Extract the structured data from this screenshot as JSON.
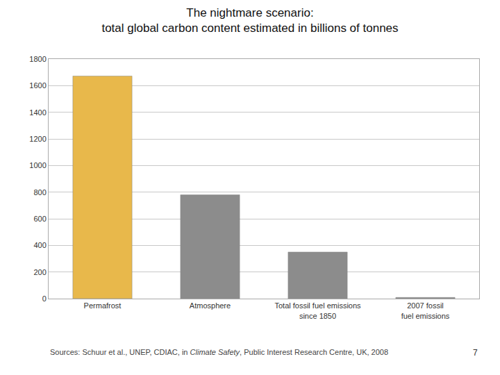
{
  "chart_data": {
    "type": "bar",
    "title": "The nightmare scenario:",
    "subtitle": "total global carbon content estimated in billions of tonnes",
    "categories": [
      "Permafrost",
      "Atmosphere",
      "Total fossil fuel emissions\nsince 1850",
      "2007 fossil\nfuel emissions"
    ],
    "values": [
      1672,
      780,
      350,
      9
    ],
    "colors": [
      "#E8B84B",
      "#8C8C8C",
      "#8C8C8C",
      "#8C8C8C"
    ],
    "ylim": [
      0,
      1800
    ],
    "yticks": [
      0,
      200,
      400,
      600,
      800,
      1000,
      1200,
      1400,
      1600,
      1800
    ],
    "grid": true,
    "source": [
      "Sources: Schuur et al., UNEP, CDIAC, in ",
      "Climate Safety",
      ", Public Interest Research Centre, UK, 2008"
    ],
    "annotations": [
      "7"
    ]
  }
}
